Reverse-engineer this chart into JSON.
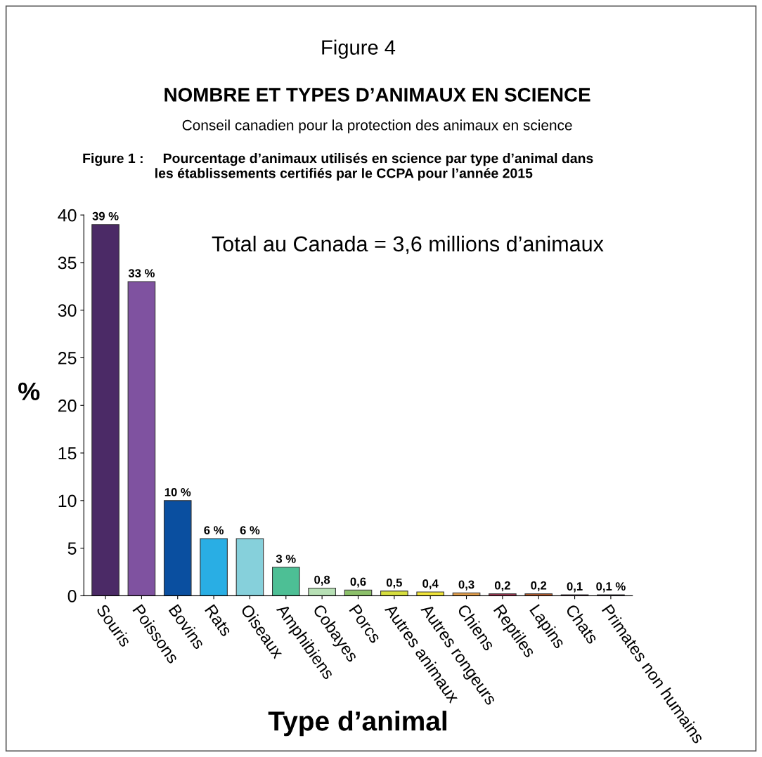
{
  "chart_data": {
    "type": "bar",
    "title": "Figure 4",
    "subtitle": "NOMBRE ET TYPES D’ANIMAUX EN SCIENCE",
    "annotations": [
      "Conseil canadien pour la protection des animaux en science",
      "Figure 1 :     Pourcentage d’animaux utilisés en science par type d’animal dans\n                   les établissements certifiés par le CCPA pour l’année 2015",
      "Total au Canada = 3,6 millions d’animaux"
    ],
    "xlabel": "Type d’animal",
    "ylabel": "%",
    "categories": [
      "Souris",
      "Poissons",
      "Bovins",
      "Rats",
      "Oiseaux",
      "Amphibiens",
      "Cobayes",
      "Porcs",
      "Autres animaux",
      "Autres rongeurs",
      "Chiens",
      "Reptiles",
      "Lapins",
      "Chats",
      "Primates non humains"
    ],
    "values": [
      39,
      33,
      10,
      6,
      6,
      3,
      0.8,
      0.6,
      0.5,
      0.4,
      0.3,
      0.2,
      0.2,
      0.1,
      0.1
    ],
    "value_labels": [
      "39 %",
      "33 %",
      "10 %",
      "6 %",
      "6 %",
      "3 %",
      "0,8",
      "0,6",
      "0,5",
      "0,4",
      "0,3",
      "0,2",
      "0,2",
      "0,1",
      "0,1 %"
    ],
    "colors": [
      "#4b2a66",
      "#7f52a0",
      "#0a4fa0",
      "#29aee4",
      "#86d0db",
      "#4dbf95",
      "#b7e0b5",
      "#8cc06a",
      "#d7df3f",
      "#f2e63a",
      "#e7a04a",
      "#b5395a",
      "#d2642e",
      "#7b2a5a",
      "#3a2a55"
    ],
    "ylim": [
      0,
      40
    ],
    "yticks": [
      0,
      5,
      10,
      15,
      20,
      25,
      30,
      35,
      40
    ],
    "grid": false,
    "legend": false
  }
}
